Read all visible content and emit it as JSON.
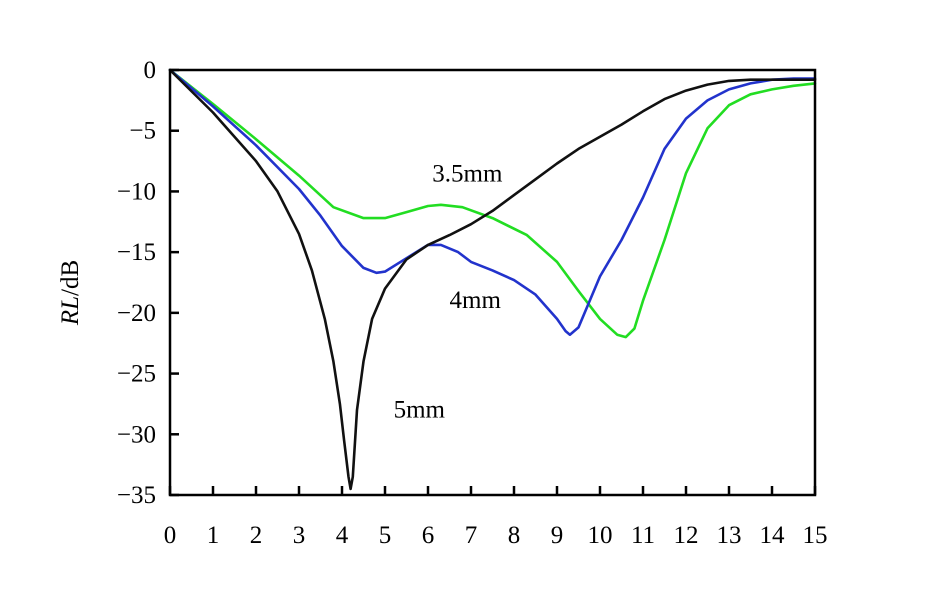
{
  "chart_data": {
    "type": "line",
    "title": "",
    "xlabel": "",
    "ylabel": "RL/dB",
    "ylabel_italic_part": "RL",
    "ylabel_unit_part": "/dB",
    "xlim": [
      0,
      15
    ],
    "ylim": [
      -35,
      0
    ],
    "x_ticks": [
      0,
      1,
      2,
      3,
      4,
      5,
      6,
      7,
      8,
      9,
      10,
      11,
      12,
      13,
      14,
      15
    ],
    "y_ticks": [
      0,
      -5,
      -10,
      -15,
      -20,
      -25,
      -30,
      -35
    ],
    "x_tick_labels": [
      "0",
      "1",
      "2",
      "3",
      "4",
      "5",
      "6",
      "7",
      "8",
      "9",
      "10",
      "11",
      "12",
      "13",
      "14",
      "15"
    ],
    "y_tick_labels": [
      "0",
      "−5",
      "−10",
      "−15",
      "−20",
      "−25",
      "−30",
      "−35"
    ],
    "grid": false,
    "series": [
      {
        "name": "3.5mm",
        "color": "#22dd22",
        "x": [
          0,
          1,
          2,
          3,
          3.8,
          4.5,
          5,
          5.5,
          6,
          6.3,
          6.8,
          7.5,
          8.3,
          9,
          9.5,
          10,
          10.4,
          10.6,
          10.8,
          11,
          11.5,
          12,
          12.5,
          13,
          13.5,
          14,
          14.5,
          15
        ],
        "y": [
          0,
          -2.8,
          -5.7,
          -8.7,
          -11.3,
          -12.2,
          -12.2,
          -11.7,
          -11.2,
          -11.1,
          -11.3,
          -12.2,
          -13.6,
          -15.8,
          -18.2,
          -20.5,
          -21.8,
          -22.0,
          -21.3,
          -19.0,
          -14.0,
          -8.5,
          -4.8,
          -2.9,
          -2.0,
          -1.6,
          -1.3,
          -1.1
        ]
      },
      {
        "name": "4mm",
        "color": "#2233cc",
        "x": [
          0,
          1,
          2,
          3,
          3.5,
          4,
          4.5,
          4.8,
          5,
          5.5,
          6,
          6.3,
          6.7,
          7,
          7.5,
          8,
          8.5,
          9,
          9.2,
          9.3,
          9.5,
          10,
          10.5,
          11,
          11.5,
          12,
          12.5,
          13,
          13.5,
          14,
          14.5,
          15
        ],
        "y": [
          0,
          -3.0,
          -6.2,
          -9.8,
          -12.0,
          -14.5,
          -16.3,
          -16.7,
          -16.6,
          -15.5,
          -14.4,
          -14.4,
          -15.0,
          -15.8,
          -16.5,
          -17.3,
          -18.5,
          -20.5,
          -21.5,
          -21.8,
          -21.2,
          -17.0,
          -14.0,
          -10.5,
          -6.5,
          -4.0,
          -2.5,
          -1.6,
          -1.1,
          -0.8,
          -0.7,
          -0.7
        ]
      },
      {
        "name": "5mm",
        "color": "#111111",
        "x": [
          0,
          1,
          2,
          2.5,
          3,
          3.3,
          3.6,
          3.8,
          3.95,
          4.05,
          4.15,
          4.2,
          4.25,
          4.35,
          4.5,
          4.7,
          5,
          5.5,
          6,
          6.5,
          7,
          7.5,
          8,
          8.5,
          9,
          9.5,
          10,
          10.5,
          11,
          11.5,
          12,
          12.5,
          13,
          13.5,
          14,
          14.5,
          15
        ],
        "y": [
          0,
          -3.5,
          -7.5,
          -10.0,
          -13.5,
          -16.5,
          -20.5,
          -24.0,
          -27.5,
          -30.5,
          -33.5,
          -34.5,
          -33.5,
          -28.0,
          -24.0,
          -20.5,
          -18.0,
          -15.6,
          -14.4,
          -13.6,
          -12.7,
          -11.6,
          -10.3,
          -9.0,
          -7.7,
          -6.5,
          -5.5,
          -4.5,
          -3.4,
          -2.4,
          -1.7,
          -1.2,
          -0.9,
          -0.8,
          -0.8,
          -0.8,
          -0.8
        ]
      }
    ],
    "annotations": [
      {
        "text": "3.5mm",
        "x": 6.1,
        "y": -9.2,
        "series": "3.5mm"
      },
      {
        "text": "4mm",
        "x": 6.5,
        "y": -19.6,
        "series": "4mm"
      },
      {
        "text": "5mm",
        "x": 5.2,
        "y": -28.6,
        "series": "5mm"
      }
    ]
  }
}
